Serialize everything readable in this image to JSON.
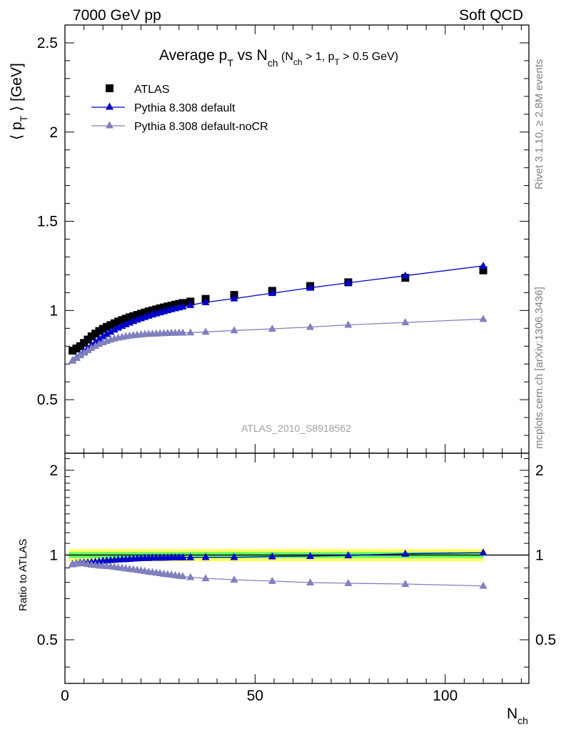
{
  "header": {
    "left": "7000 GeV pp",
    "right": "Soft QCD"
  },
  "side_labels": {
    "rivet": "Rivet 3.1.10, ≥ 2.8M events",
    "mcplots": "mcplots.cern.ch [arXiv:1306.3436]"
  },
  "chart_data": [
    {
      "type": "scatter",
      "panel": "main",
      "title": {
        "main": "Average p",
        "sub1": "T",
        "mid": " vs N",
        "sub2": "ch",
        "cut_a": " (N",
        "cut_sub1": "ch",
        "cut_b": " > 1, p",
        "cut_sub2": "T",
        "cut_c": " > 0.5 GeV)"
      },
      "ylabel": {
        "a": "⟨ p",
        "sub": "T",
        "b": " ⟩  [GeV]"
      },
      "watermark": "ATLAS_2010_S8918562",
      "xlim": [
        0,
        122
      ],
      "ylim": [
        0.2,
        2.6
      ],
      "yticks": [
        0.5,
        1,
        1.5,
        2,
        2.5
      ],
      "yticklabels": [
        "0.5",
        "1",
        "1.5",
        "2",
        "2.5"
      ],
      "legend_position": "top-left",
      "x": [
        2,
        3,
        4,
        5,
        6,
        7,
        8,
        9,
        10,
        11,
        12,
        13,
        14,
        15,
        16,
        17,
        18,
        19,
        20,
        21,
        22,
        23,
        24,
        25,
        26,
        27,
        28,
        29,
        30,
        31,
        33,
        37,
        44.5,
        54.5,
        64.5,
        74.5,
        89.5,
        110
      ],
      "series": [
        {
          "name": "ATLAS",
          "marker": "square",
          "color": "#000000",
          "line": false,
          "values": [
            0.775,
            0.787,
            0.8,
            0.818,
            0.837,
            0.855,
            0.87,
            0.885,
            0.897,
            0.908,
            0.918,
            0.928,
            0.938,
            0.946,
            0.954,
            0.962,
            0.968,
            0.975,
            0.982,
            0.988,
            0.995,
            1.0,
            1.006,
            1.012,
            1.017,
            1.022,
            1.027,
            1.032,
            1.037,
            1.042,
            1.05,
            1.065,
            1.087,
            1.11,
            1.137,
            1.158,
            1.183,
            1.225
          ]
        },
        {
          "name": "Pythia 8.308 default",
          "marker": "triangle",
          "color": "#0000cc",
          "line": true,
          "values": [
            0.72,
            0.736,
            0.752,
            0.77,
            0.788,
            0.806,
            0.823,
            0.84,
            0.855,
            0.868,
            0.88,
            0.892,
            0.903,
            0.913,
            0.922,
            0.931,
            0.94,
            0.948,
            0.956,
            0.963,
            0.97,
            0.977,
            0.983,
            0.989,
            0.995,
            1.001,
            1.007,
            1.012,
            1.017,
            1.022,
            1.03,
            1.046,
            1.067,
            1.097,
            1.127,
            1.155,
            1.195,
            1.25
          ]
        },
        {
          "name": "Pythia 8.308 default-noCR",
          "marker": "triangle",
          "color": "#8080bf",
          "line": true,
          "values": [
            0.718,
            0.733,
            0.748,
            0.763,
            0.777,
            0.79,
            0.801,
            0.812,
            0.821,
            0.829,
            0.836,
            0.842,
            0.847,
            0.851,
            0.855,
            0.858,
            0.861,
            0.863,
            0.865,
            0.867,
            0.868,
            0.869,
            0.87,
            0.871,
            0.872,
            0.873,
            0.874,
            0.874,
            0.875,
            0.875,
            0.876,
            0.88,
            0.888,
            0.897,
            0.907,
            0.919,
            0.933,
            0.952
          ]
        }
      ]
    },
    {
      "type": "scatter",
      "panel": "ratio",
      "ylabel": "Ratio to ATLAS",
      "xlabel": {
        "a": "N",
        "sub": "ch"
      },
      "xlim": [
        0,
        122
      ],
      "ylim": [
        0.35,
        2.3
      ],
      "yticks": [
        0.5,
        1,
        2
      ],
      "yticklabels": [
        "0.5",
        "1",
        "2"
      ],
      "xticks": [
        0,
        50,
        100
      ],
      "xticklabels": [
        "0",
        "50",
        "100"
      ],
      "band_colors": {
        "inner": "#66ff66",
        "outer": "#ffff66"
      },
      "x": [
        2,
        3,
        4,
        5,
        6,
        7,
        8,
        9,
        10,
        11,
        12,
        13,
        14,
        15,
        16,
        17,
        18,
        19,
        20,
        21,
        22,
        23,
        24,
        25,
        26,
        27,
        28,
        29,
        30,
        31,
        33,
        37,
        44.5,
        54.5,
        64.5,
        74.5,
        89.5,
        110
      ],
      "series": [
        {
          "name": "Pythia 8.308 default",
          "marker": "triangle",
          "color": "#0000cc",
          "line": true,
          "values": [
            0.929,
            0.935,
            0.94,
            0.941,
            0.941,
            0.943,
            0.946,
            0.949,
            0.953,
            0.956,
            0.959,
            0.961,
            0.963,
            0.965,
            0.966,
            0.968,
            0.971,
            0.972,
            0.974,
            0.975,
            0.975,
            0.977,
            0.977,
            0.977,
            0.978,
            0.979,
            0.981,
            0.981,
            0.981,
            0.981,
            0.981,
            0.982,
            0.982,
            0.988,
            0.991,
            0.997,
            1.01,
            1.02
          ]
        },
        {
          "name": "Pythia 8.308 default-noCR",
          "marker": "triangle",
          "color": "#8080bf",
          "line": true,
          "values": [
            0.926,
            0.931,
            0.935,
            0.933,
            0.928,
            0.924,
            0.921,
            0.917,
            0.915,
            0.913,
            0.911,
            0.907,
            0.903,
            0.9,
            0.896,
            0.892,
            0.889,
            0.885,
            0.881,
            0.877,
            0.872,
            0.869,
            0.865,
            0.861,
            0.857,
            0.854,
            0.851,
            0.847,
            0.844,
            0.84,
            0.834,
            0.826,
            0.817,
            0.808,
            0.798,
            0.794,
            0.789,
            0.777
          ]
        }
      ]
    }
  ]
}
